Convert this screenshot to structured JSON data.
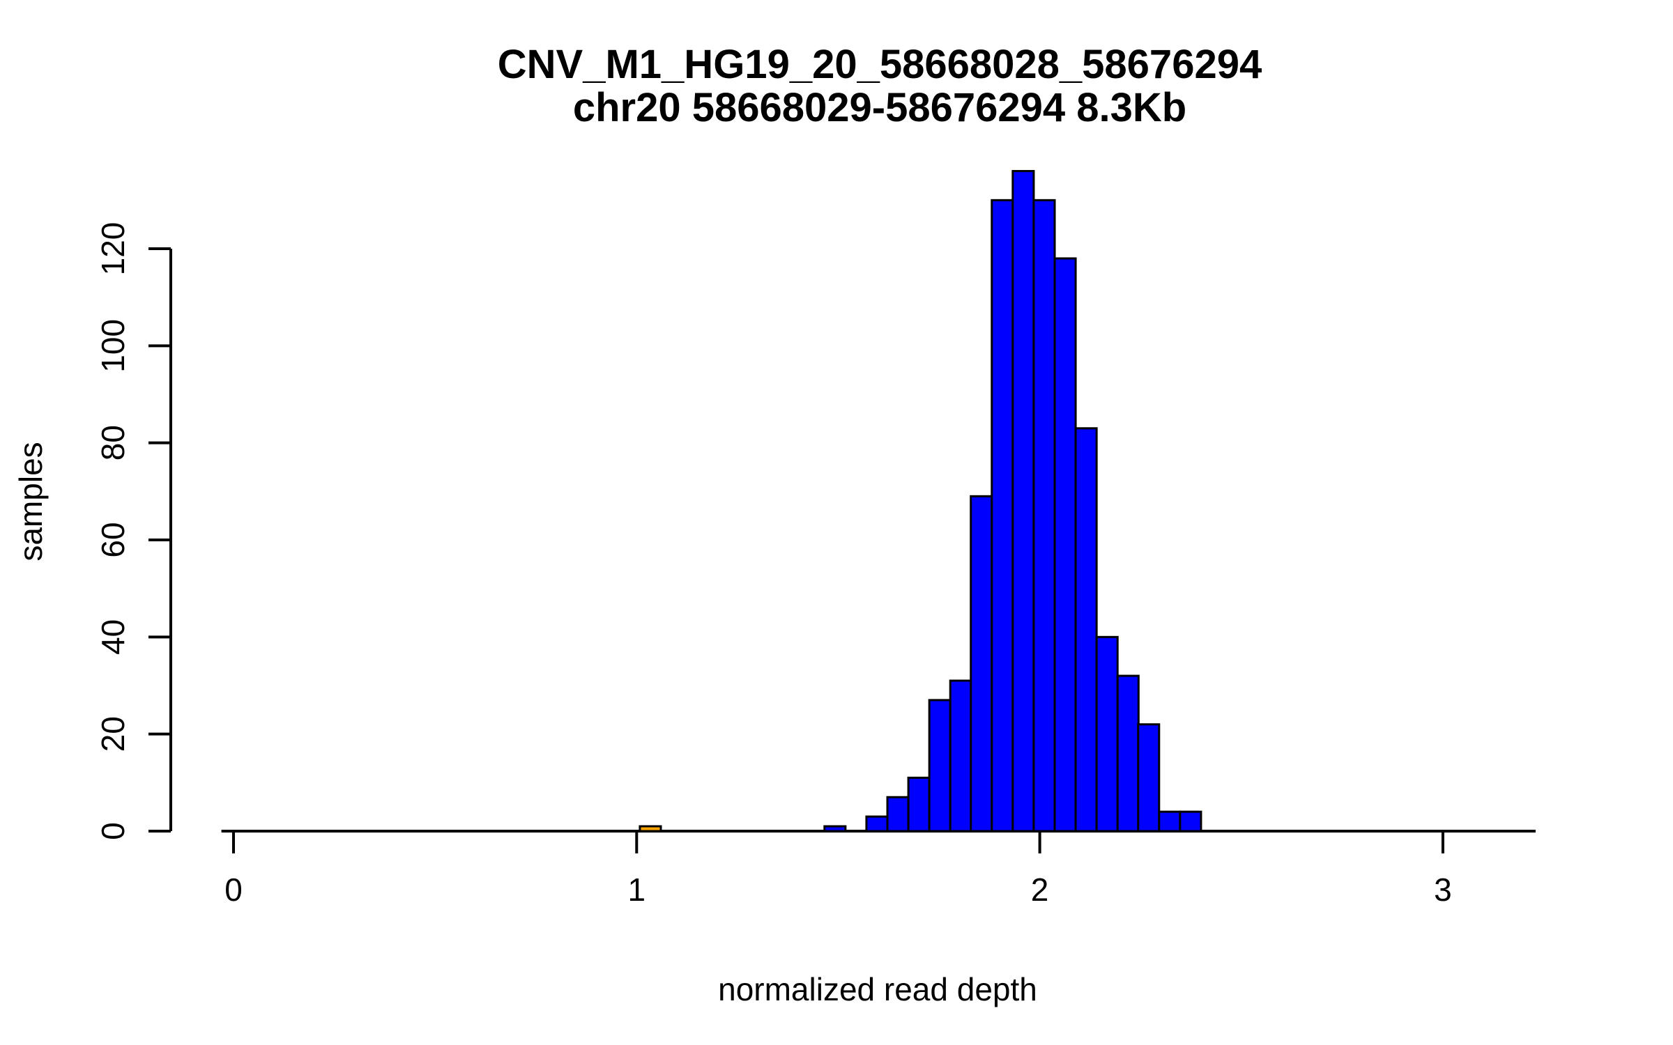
{
  "chart_data": {
    "type": "bar",
    "subtype": "histogram",
    "title": "CNV_M1_HG19_20_58668028_58676294",
    "subtitle": "chr20 58668029-58676294 8.3Kb",
    "xlabel": "normalized read depth",
    "ylabel": "samples",
    "x_ticks": [
      0,
      1,
      2,
      3
    ],
    "y_ticks": [
      0,
      20,
      40,
      60,
      80,
      100,
      120
    ],
    "xlim": [
      -0.03,
      3.23
    ],
    "ylim": [
      0,
      136
    ],
    "grid": false,
    "legend": "none",
    "bin_width": 0.052,
    "bars": [
      {
        "x0": 1.008,
        "count": 1,
        "color": "#FFA500"
      },
      {
        "x0": 1.466,
        "count": 1
      },
      {
        "x0": 1.57,
        "count": 3
      },
      {
        "x0": 1.622,
        "count": 7
      },
      {
        "x0": 1.674,
        "count": 11
      },
      {
        "x0": 1.726,
        "count": 27
      },
      {
        "x0": 1.778,
        "count": 31
      },
      {
        "x0": 1.829,
        "count": 69
      },
      {
        "x0": 1.881,
        "count": 130
      },
      {
        "x0": 1.933,
        "count": 136
      },
      {
        "x0": 1.985,
        "count": 130
      },
      {
        "x0": 2.037,
        "count": 118
      },
      {
        "x0": 2.089,
        "count": 83
      },
      {
        "x0": 2.141,
        "count": 40
      },
      {
        "x0": 2.193,
        "count": 32
      },
      {
        "x0": 2.244,
        "count": 22
      },
      {
        "x0": 2.296,
        "count": 4
      },
      {
        "x0": 2.348,
        "count": 4
      }
    ],
    "colors": {
      "bar_fill": "#0000FF",
      "highlight_fill": "#FFA500",
      "bar_stroke": "#000000",
      "axis": "#000000",
      "background": "#FFFFFF"
    }
  }
}
